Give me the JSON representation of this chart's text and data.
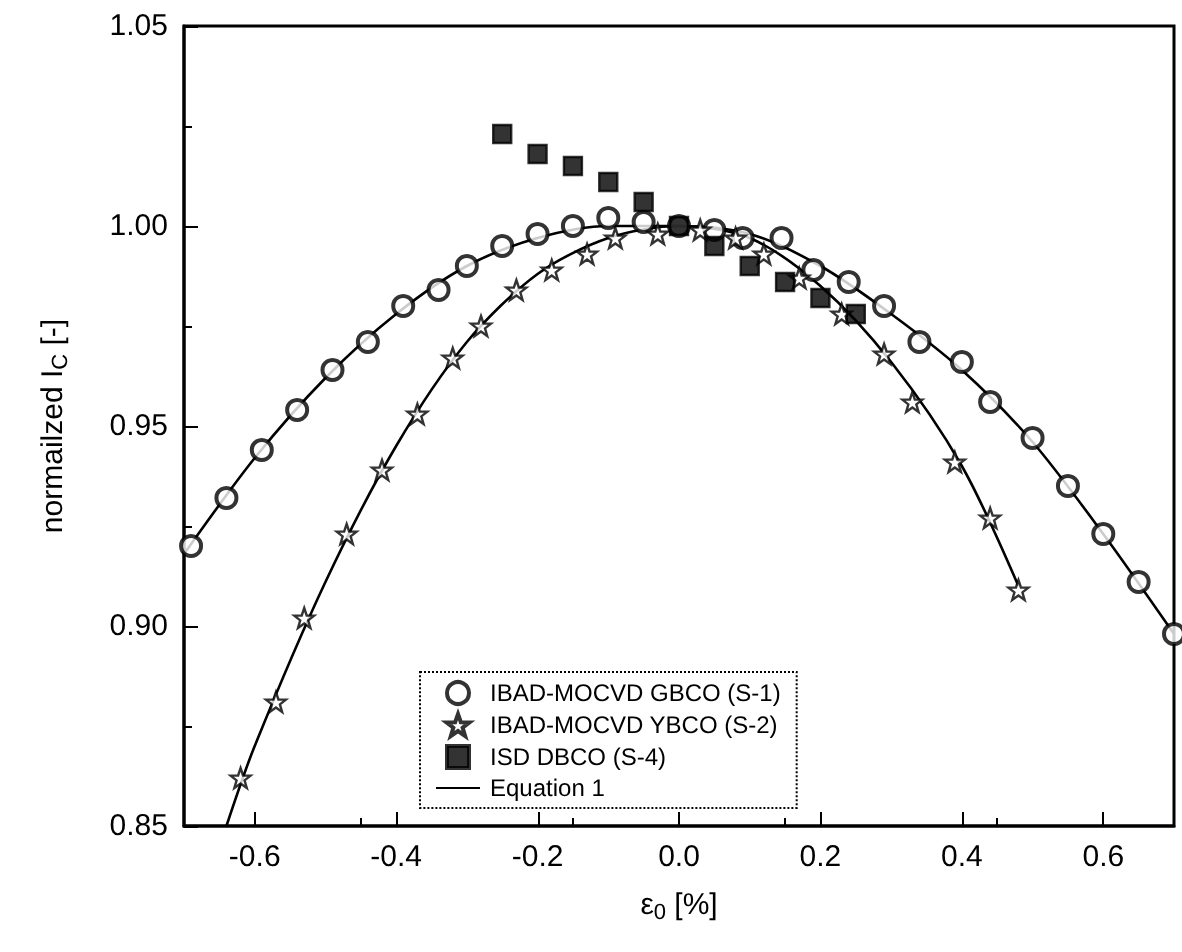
{
  "chart_data": {
    "type": "scatter",
    "xlabel": "ε$_{0}$ [%]",
    "ylabel": "normailzed I$_{C}$ [-]",
    "xlim": [
      -0.7,
      0.7
    ],
    "ylim": [
      0.85,
      1.05
    ],
    "xticks": [
      {
        "value": -0.6,
        "label": "-0.6"
      },
      {
        "value": -0.4,
        "label": "-0.4"
      },
      {
        "value": -0.2,
        "label": "-0.2"
      },
      {
        "value": 0,
        "label": "0.0"
      },
      {
        "value": 0.2,
        "label": "0.2"
      },
      {
        "value": 0.4,
        "label": "0.4"
      },
      {
        "value": 0.6,
        "label": "0.6"
      }
    ],
    "yticks": [
      {
        "value": 0.85,
        "label": "0.85"
      },
      {
        "value": 0.9,
        "label": "0.90"
      },
      {
        "value": 0.95,
        "label": "0.95"
      },
      {
        "value": 1.0,
        "label": "1.00"
      },
      {
        "value": 1.05,
        "label": "1.05"
      }
    ],
    "grid": false,
    "legend": "bottom",
    "series": [
      {
        "name": "IBAD-MOCVD GBCO (S-1)",
        "color": "#000000",
        "marker": "circle",
        "x": [
          -0.69,
          -0.64,
          -0.59,
          -0.54,
          -0.49,
          -0.44,
          -0.39,
          -0.34,
          -0.3,
          -0.25,
          -0.2,
          -0.15,
          -0.1,
          -0.05,
          0.0,
          0.05,
          0.09,
          0.145,
          0.19,
          0.24,
          0.29,
          0.34,
          0.4,
          0.44,
          0.5,
          0.55,
          0.6,
          0.65,
          0.7
        ],
        "values": [
          0.92,
          0.932,
          0.944,
          0.954,
          0.964,
          0.971,
          0.98,
          0.984,
          0.99,
          0.995,
          0.998,
          1.0,
          1.002,
          1.001,
          1.0,
          0.999,
          0.997,
          0.997,
          0.989,
          0.986,
          0.98,
          0.971,
          0.966,
          0.956,
          0.947,
          0.935,
          0.923,
          0.911,
          0.898
        ]
      },
      {
        "name": "IBAD-MOCVD YBCO (S-2)",
        "color": "#000000",
        "marker": "star",
        "x": [
          -0.62,
          -0.57,
          -0.53,
          -0.47,
          -0.42,
          -0.37,
          -0.32,
          -0.28,
          -0.23,
          -0.18,
          -0.13,
          -0.09,
          -0.03,
          0.03,
          0.08,
          0.12,
          0.17,
          0.23,
          0.29,
          0.33,
          0.39,
          0.44,
          0.48
        ],
        "values": [
          0.862,
          0.881,
          0.902,
          0.923,
          0.939,
          0.953,
          0.967,
          0.975,
          0.984,
          0.989,
          0.993,
          0.997,
          0.998,
          0.999,
          0.997,
          0.993,
          0.987,
          0.978,
          0.968,
          0.956,
          0.941,
          0.927,
          0.909
        ]
      },
      {
        "name": "ISD DBCO (S-4)",
        "color": "#000000",
        "marker": "square",
        "x": [
          -0.25,
          -0.2,
          -0.15,
          -0.1,
          -0.05,
          0.0,
          0.05,
          0.1,
          0.15,
          0.2,
          0.25
        ],
        "values": [
          1.023,
          1.018,
          1.015,
          1.011,
          1.006,
          1.0,
          0.995,
          0.99,
          0.986,
          0.982,
          0.978
        ]
      },
      {
        "name": "Equation 1",
        "type": "line",
        "color": "#000000",
        "marker": "none",
        "x": [
          -0.7,
          -0.6,
          -0.5,
          -0.4,
          -0.3,
          -0.2,
          -0.1,
          0.0,
          0.1,
          0.2,
          0.3,
          0.4,
          0.5,
          0.6,
          0.7
        ],
        "values": [
          0.918,
          0.942,
          0.962,
          0.978,
          0.99,
          0.997,
          1.0,
          1.0,
          0.998,
          0.99,
          0.978,
          0.964,
          0.946,
          0.923,
          0.898
        ]
      },
      {
        "type": "line",
        "color": "#000000",
        "marker": "none",
        "x": [
          -0.64,
          -0.6,
          -0.5,
          -0.4,
          -0.3,
          -0.2,
          -0.1,
          0.0,
          0.1,
          0.2,
          0.3,
          0.4,
          0.48
        ],
        "values": [
          0.85,
          0.87,
          0.911,
          0.945,
          0.971,
          0.988,
          0.997,
          1.0,
          0.997,
          0.985,
          0.966,
          0.94,
          0.91
        ]
      }
    ]
  }
}
